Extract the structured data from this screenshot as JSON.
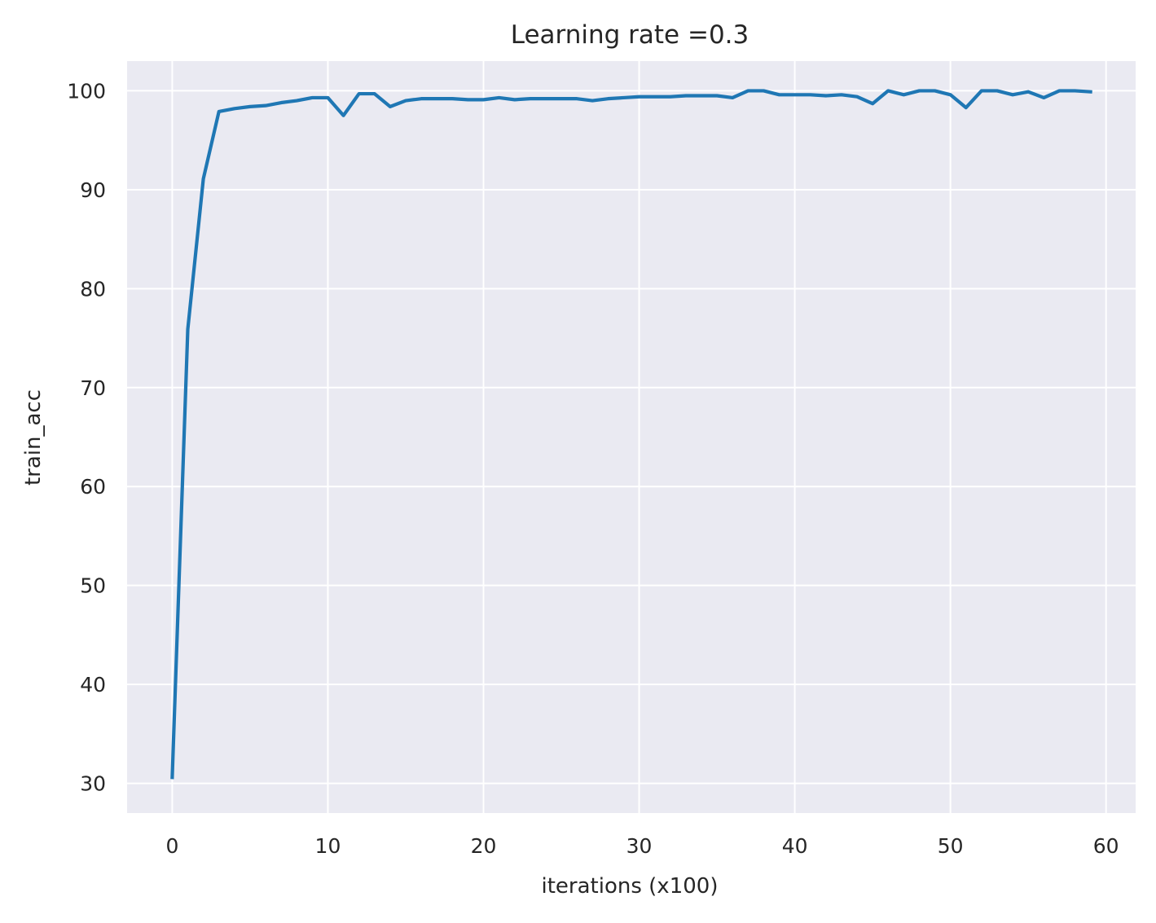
{
  "chart_data": {
    "type": "line",
    "title": "Learning rate =0.3",
    "xlabel": "iterations (x100)",
    "ylabel": "train_acc",
    "xlim": [
      -2.9,
      61.9
    ],
    "ylim": [
      27.0,
      103.0
    ],
    "x_ticks": [
      0,
      10,
      20,
      30,
      40,
      50,
      60
    ],
    "y_ticks": [
      30,
      40,
      50,
      60,
      70,
      80,
      90,
      100
    ],
    "grid": true,
    "background_color": "#eaeaf2",
    "grid_color": "#ffffff",
    "line_color": "#1f77b4",
    "series": [
      {
        "x": [
          0,
          1,
          2,
          3,
          4,
          5,
          6,
          7,
          8,
          9,
          10,
          11,
          12,
          13,
          14,
          15,
          16,
          17,
          18,
          19,
          20,
          21,
          22,
          23,
          24,
          25,
          26,
          27,
          28,
          29,
          30,
          31,
          32,
          33,
          34,
          35,
          36,
          37,
          38,
          39,
          40,
          41,
          42,
          43,
          44,
          45,
          46,
          47,
          48,
          49,
          50,
          51,
          52,
          53,
          54,
          55,
          56,
          57,
          58,
          59
        ],
        "values": [
          30.6,
          75.9,
          91.1,
          97.9,
          98.2,
          98.4,
          98.5,
          98.8,
          99.0,
          99.3,
          99.3,
          97.5,
          99.7,
          99.7,
          98.4,
          99.0,
          99.2,
          99.2,
          99.2,
          99.1,
          99.1,
          99.3,
          99.1,
          99.2,
          99.2,
          99.2,
          99.2,
          99.0,
          99.2,
          99.3,
          99.4,
          99.4,
          99.4,
          99.5,
          99.5,
          99.5,
          99.3,
          100.0,
          100.0,
          99.6,
          99.6,
          99.6,
          99.5,
          99.6,
          99.4,
          98.7,
          100.0,
          99.6,
          100.0,
          100.0,
          99.6,
          98.3,
          100.0,
          100.0,
          99.6,
          99.9,
          99.3,
          100.0,
          100.0,
          99.9
        ]
      }
    ]
  }
}
